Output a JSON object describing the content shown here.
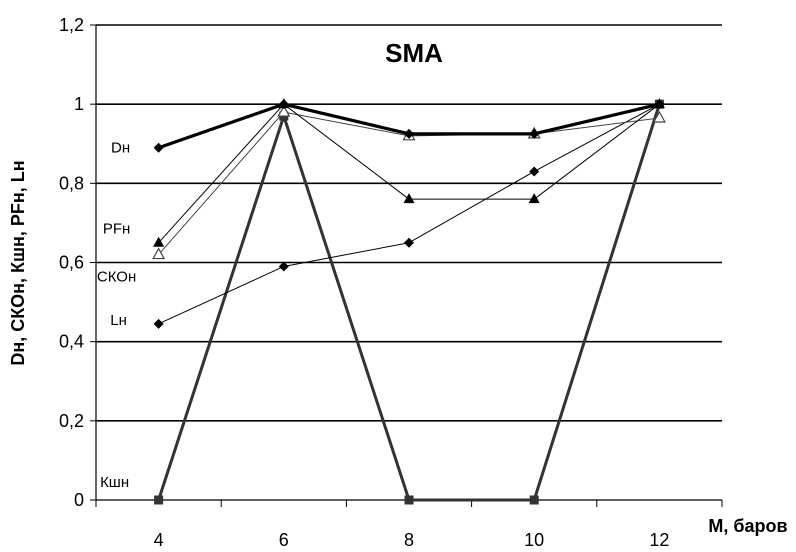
{
  "chart_data": {
    "type": "line",
    "title": "SMA",
    "xlabel": "M, баров",
    "ylabel": "Dн, СКОн, Кшн, PFн, Lн",
    "x": [
      4,
      6,
      8,
      10,
      12
    ],
    "x_ticks": [
      "4",
      "6",
      "8",
      "10",
      "12"
    ],
    "y_ticks": [
      "0",
      "0,2",
      "0,4",
      "0,6",
      "0,8",
      "1",
      "1,2"
    ],
    "ylim": [
      0,
      1.2
    ],
    "grid": "horizontal",
    "series": [
      {
        "name": "Dн",
        "values": [
          0.89,
          1.0,
          0.925,
          0.925,
          1.0
        ],
        "marker": "diamond",
        "stroke": "#000000",
        "width": 3.2
      },
      {
        "name": "PFн",
        "values": [
          0.65,
          1.0,
          0.76,
          0.76,
          1.0
        ],
        "marker": "triangle",
        "stroke": "#000000",
        "width": 1
      },
      {
        "name": "СКОн",
        "values": [
          0.62,
          0.98,
          0.92,
          0.925,
          0.965
        ],
        "marker": "triangle-open",
        "stroke": "#444444",
        "width": 1
      },
      {
        "name": "Lн",
        "values": [
          0.445,
          0.59,
          0.65,
          0.83,
          1.0
        ],
        "marker": "diamond",
        "stroke": "#000000",
        "width": 1
      },
      {
        "name": "Кшн",
        "values": [
          0,
          0.97,
          0,
          0,
          1.0
        ],
        "marker": "square",
        "stroke": "#333333",
        "width": 3
      }
    ]
  }
}
